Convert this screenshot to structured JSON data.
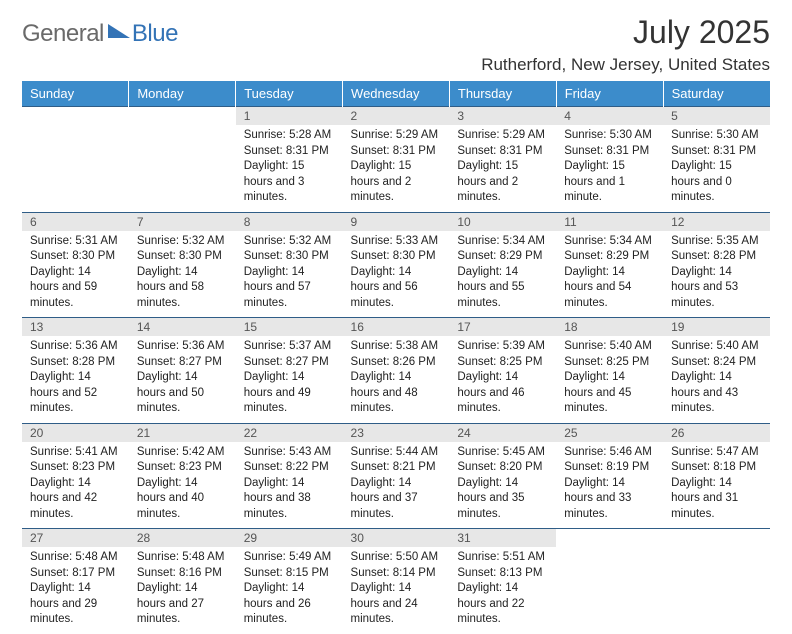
{
  "logo": {
    "part1": "General",
    "part2": "Blue"
  },
  "title": {
    "month": "July 2025",
    "location": "Rutherford, New Jersey, United States"
  },
  "colors": {
    "header_bg": "#3c8ccb",
    "header_text": "#ffffff",
    "row_border": "#2f5d87",
    "daynum_bg": "#e7e7e7",
    "logo_blue": "#3373b6",
    "logo_gray": "#6a6a6a"
  },
  "weekdays": [
    "Sunday",
    "Monday",
    "Tuesday",
    "Wednesday",
    "Thursday",
    "Friday",
    "Saturday"
  ],
  "weeks": [
    [
      null,
      null,
      {
        "n": "1",
        "sunrise": "Sunrise: 5:28 AM",
        "sunset": "Sunset: 8:31 PM",
        "day": "Daylight: 15 hours and 3 minutes."
      },
      {
        "n": "2",
        "sunrise": "Sunrise: 5:29 AM",
        "sunset": "Sunset: 8:31 PM",
        "day": "Daylight: 15 hours and 2 minutes."
      },
      {
        "n": "3",
        "sunrise": "Sunrise: 5:29 AM",
        "sunset": "Sunset: 8:31 PM",
        "day": "Daylight: 15 hours and 2 minutes."
      },
      {
        "n": "4",
        "sunrise": "Sunrise: 5:30 AM",
        "sunset": "Sunset: 8:31 PM",
        "day": "Daylight: 15 hours and 1 minute."
      },
      {
        "n": "5",
        "sunrise": "Sunrise: 5:30 AM",
        "sunset": "Sunset: 8:31 PM",
        "day": "Daylight: 15 hours and 0 minutes."
      }
    ],
    [
      {
        "n": "6",
        "sunrise": "Sunrise: 5:31 AM",
        "sunset": "Sunset: 8:30 PM",
        "day": "Daylight: 14 hours and 59 minutes."
      },
      {
        "n": "7",
        "sunrise": "Sunrise: 5:32 AM",
        "sunset": "Sunset: 8:30 PM",
        "day": "Daylight: 14 hours and 58 minutes."
      },
      {
        "n": "8",
        "sunrise": "Sunrise: 5:32 AM",
        "sunset": "Sunset: 8:30 PM",
        "day": "Daylight: 14 hours and 57 minutes."
      },
      {
        "n": "9",
        "sunrise": "Sunrise: 5:33 AM",
        "sunset": "Sunset: 8:30 PM",
        "day": "Daylight: 14 hours and 56 minutes."
      },
      {
        "n": "10",
        "sunrise": "Sunrise: 5:34 AM",
        "sunset": "Sunset: 8:29 PM",
        "day": "Daylight: 14 hours and 55 minutes."
      },
      {
        "n": "11",
        "sunrise": "Sunrise: 5:34 AM",
        "sunset": "Sunset: 8:29 PM",
        "day": "Daylight: 14 hours and 54 minutes."
      },
      {
        "n": "12",
        "sunrise": "Sunrise: 5:35 AM",
        "sunset": "Sunset: 8:28 PM",
        "day": "Daylight: 14 hours and 53 minutes."
      }
    ],
    [
      {
        "n": "13",
        "sunrise": "Sunrise: 5:36 AM",
        "sunset": "Sunset: 8:28 PM",
        "day": "Daylight: 14 hours and 52 minutes."
      },
      {
        "n": "14",
        "sunrise": "Sunrise: 5:36 AM",
        "sunset": "Sunset: 8:27 PM",
        "day": "Daylight: 14 hours and 50 minutes."
      },
      {
        "n": "15",
        "sunrise": "Sunrise: 5:37 AM",
        "sunset": "Sunset: 8:27 PM",
        "day": "Daylight: 14 hours and 49 minutes."
      },
      {
        "n": "16",
        "sunrise": "Sunrise: 5:38 AM",
        "sunset": "Sunset: 8:26 PM",
        "day": "Daylight: 14 hours and 48 minutes."
      },
      {
        "n": "17",
        "sunrise": "Sunrise: 5:39 AM",
        "sunset": "Sunset: 8:25 PM",
        "day": "Daylight: 14 hours and 46 minutes."
      },
      {
        "n": "18",
        "sunrise": "Sunrise: 5:40 AM",
        "sunset": "Sunset: 8:25 PM",
        "day": "Daylight: 14 hours and 45 minutes."
      },
      {
        "n": "19",
        "sunrise": "Sunrise: 5:40 AM",
        "sunset": "Sunset: 8:24 PM",
        "day": "Daylight: 14 hours and 43 minutes."
      }
    ],
    [
      {
        "n": "20",
        "sunrise": "Sunrise: 5:41 AM",
        "sunset": "Sunset: 8:23 PM",
        "day": "Daylight: 14 hours and 42 minutes."
      },
      {
        "n": "21",
        "sunrise": "Sunrise: 5:42 AM",
        "sunset": "Sunset: 8:23 PM",
        "day": "Daylight: 14 hours and 40 minutes."
      },
      {
        "n": "22",
        "sunrise": "Sunrise: 5:43 AM",
        "sunset": "Sunset: 8:22 PM",
        "day": "Daylight: 14 hours and 38 minutes."
      },
      {
        "n": "23",
        "sunrise": "Sunrise: 5:44 AM",
        "sunset": "Sunset: 8:21 PM",
        "day": "Daylight: 14 hours and 37 minutes."
      },
      {
        "n": "24",
        "sunrise": "Sunrise: 5:45 AM",
        "sunset": "Sunset: 8:20 PM",
        "day": "Daylight: 14 hours and 35 minutes."
      },
      {
        "n": "25",
        "sunrise": "Sunrise: 5:46 AM",
        "sunset": "Sunset: 8:19 PM",
        "day": "Daylight: 14 hours and 33 minutes."
      },
      {
        "n": "26",
        "sunrise": "Sunrise: 5:47 AM",
        "sunset": "Sunset: 8:18 PM",
        "day": "Daylight: 14 hours and 31 minutes."
      }
    ],
    [
      {
        "n": "27",
        "sunrise": "Sunrise: 5:48 AM",
        "sunset": "Sunset: 8:17 PM",
        "day": "Daylight: 14 hours and 29 minutes."
      },
      {
        "n": "28",
        "sunrise": "Sunrise: 5:48 AM",
        "sunset": "Sunset: 8:16 PM",
        "day": "Daylight: 14 hours and 27 minutes."
      },
      {
        "n": "29",
        "sunrise": "Sunrise: 5:49 AM",
        "sunset": "Sunset: 8:15 PM",
        "day": "Daylight: 14 hours and 26 minutes."
      },
      {
        "n": "30",
        "sunrise": "Sunrise: 5:50 AM",
        "sunset": "Sunset: 8:14 PM",
        "day": "Daylight: 14 hours and 24 minutes."
      },
      {
        "n": "31",
        "sunrise": "Sunrise: 5:51 AM",
        "sunset": "Sunset: 8:13 PM",
        "day": "Daylight: 14 hours and 22 minutes."
      },
      null,
      null
    ]
  ]
}
